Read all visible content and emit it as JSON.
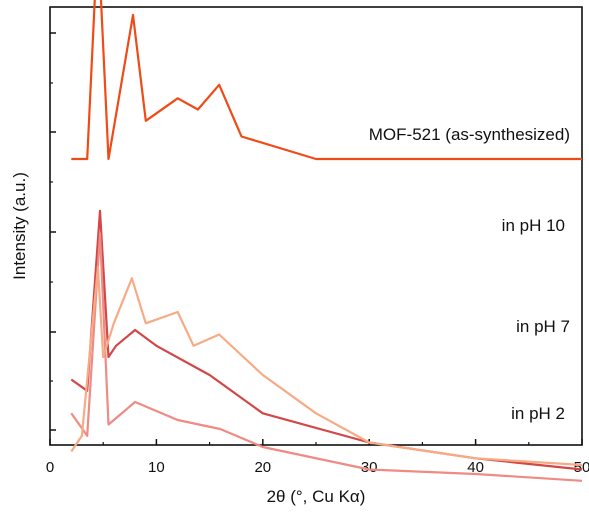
{
  "chart_data": {
    "type": "line",
    "xlabel": "2θ (°, Cu Kα)",
    "ylabel": "Intensity (a.u.)",
    "xlim": [
      0,
      50
    ],
    "x_ticks": [
      0,
      10,
      20,
      30,
      40,
      50
    ],
    "y_tick_labels_shown": false,
    "grid": false,
    "stacked_offset": true,
    "series": [
      {
        "name": "MOF-521 (as-synthesized)",
        "color": "#f04a16",
        "x": [
          2,
          3.5,
          4.5,
          5.5,
          7.8,
          9.0,
          12.0,
          13.9,
          15.9,
          18.0,
          25,
          35,
          50
        ],
        "values": [
          1.28,
          1.28,
          2.28,
          1.28,
          1.92,
          1.45,
          1.55,
          1.5,
          1.61,
          1.38,
          1.28,
          1.28,
          1.28
        ]
      },
      {
        "name": "in pH 10",
        "color": "#d24747",
        "x": [
          2,
          3.5,
          4.7,
          5.5,
          6.2,
          8,
          10,
          15,
          20,
          30,
          40,
          50
        ],
        "values": [
          0.3,
          0.25,
          1.05,
          0.4,
          0.45,
          0.52,
          0.45,
          0.32,
          0.15,
          0.02,
          -0.05,
          -0.1
        ]
      },
      {
        "name": "in pH 7",
        "color": "#ef8a85",
        "x": [
          2,
          3.5,
          4.7,
          5.5,
          8,
          12,
          16,
          20,
          30,
          40,
          50
        ],
        "values": [
          0.15,
          0.05,
          0.95,
          0.1,
          0.2,
          0.12,
          0.08,
          0.0,
          -0.1,
          -0.12,
          -0.15
        ]
      },
      {
        "name": "in pH 2",
        "color": "#f7ab85",
        "x": [
          2,
          3,
          4.5,
          5,
          6,
          7.7,
          9,
          12,
          13.5,
          15.9,
          20,
          25,
          30,
          40,
          50
        ],
        "values": [
          -0.02,
          0.05,
          0.8,
          0.4,
          0.55,
          0.75,
          0.55,
          0.6,
          0.45,
          0.5,
          0.32,
          0.15,
          0.02,
          -0.05,
          -0.08
        ]
      }
    ]
  }
}
